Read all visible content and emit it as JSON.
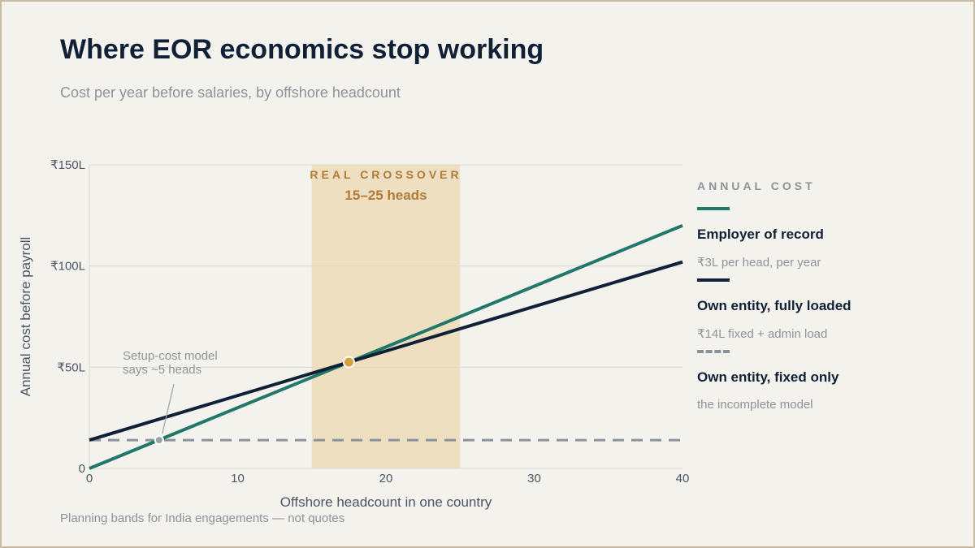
{
  "title": "Where EOR economics stop working",
  "subtitle": "Cost per year before salaries, by offshore headcount",
  "footnote": "Planning bands for India engagements — not quotes",
  "legend": {
    "heading": "ANNUAL COST",
    "items": [
      {
        "name": "Employer of record",
        "desc": "₹3L per head, per year",
        "color": "#21786a",
        "style": "solid"
      },
      {
        "name": "Own entity, fully loaded",
        "desc": "₹14L fixed + admin load",
        "color": "#102137",
        "style": "solid"
      },
      {
        "name": "Own entity, fixed only",
        "desc": "the incomplete model",
        "color": "#8a929d",
        "style": "dashed"
      }
    ]
  },
  "chart_data": {
    "type": "line",
    "xlabel": "Offshore headcount in one country",
    "ylabel": "Annual cost before payroll",
    "xlim": [
      0,
      40
    ],
    "ylim": [
      0,
      150
    ],
    "xticks": [
      0,
      10,
      20,
      30,
      40
    ],
    "xtick_labels": [
      "0",
      "10",
      "20",
      "30",
      "40"
    ],
    "yticks": [
      0,
      50,
      100,
      150
    ],
    "ytick_labels": [
      "0",
      "₹50L",
      "₹100L",
      "₹150L"
    ],
    "grid": "horizontal",
    "series": [
      {
        "name": "Employer of record",
        "x": [
          0,
          40
        ],
        "y": [
          0,
          120
        ],
        "color": "#21786a",
        "style": "solid"
      },
      {
        "name": "Own entity, fully loaded",
        "x": [
          0,
          40
        ],
        "y": [
          14,
          102
        ],
        "color": "#102137",
        "style": "solid"
      },
      {
        "name": "Own entity, fixed only",
        "x": [
          0,
          40
        ],
        "y": [
          14,
          14
        ],
        "color": "#8a929d",
        "style": "dashed"
      }
    ],
    "band": {
      "x_start": 15,
      "x_end": 25,
      "label": "REAL CROSSOVER",
      "sublabel": "15–25 heads",
      "color": "#efdfc1",
      "text_color": "#b07a38"
    },
    "points": [
      {
        "x": 17.5,
        "y": 52.5,
        "color": "#d9a040",
        "role": "crossover"
      },
      {
        "x": 4.7,
        "y": 14,
        "color": "#9aa0a8",
        "role": "setup-cost"
      }
    ],
    "annotation": {
      "lines": [
        "Setup-cost model",
        "says ~5 heads"
      ],
      "x": 4.7,
      "y": 14,
      "color": "#8d939c"
    }
  }
}
